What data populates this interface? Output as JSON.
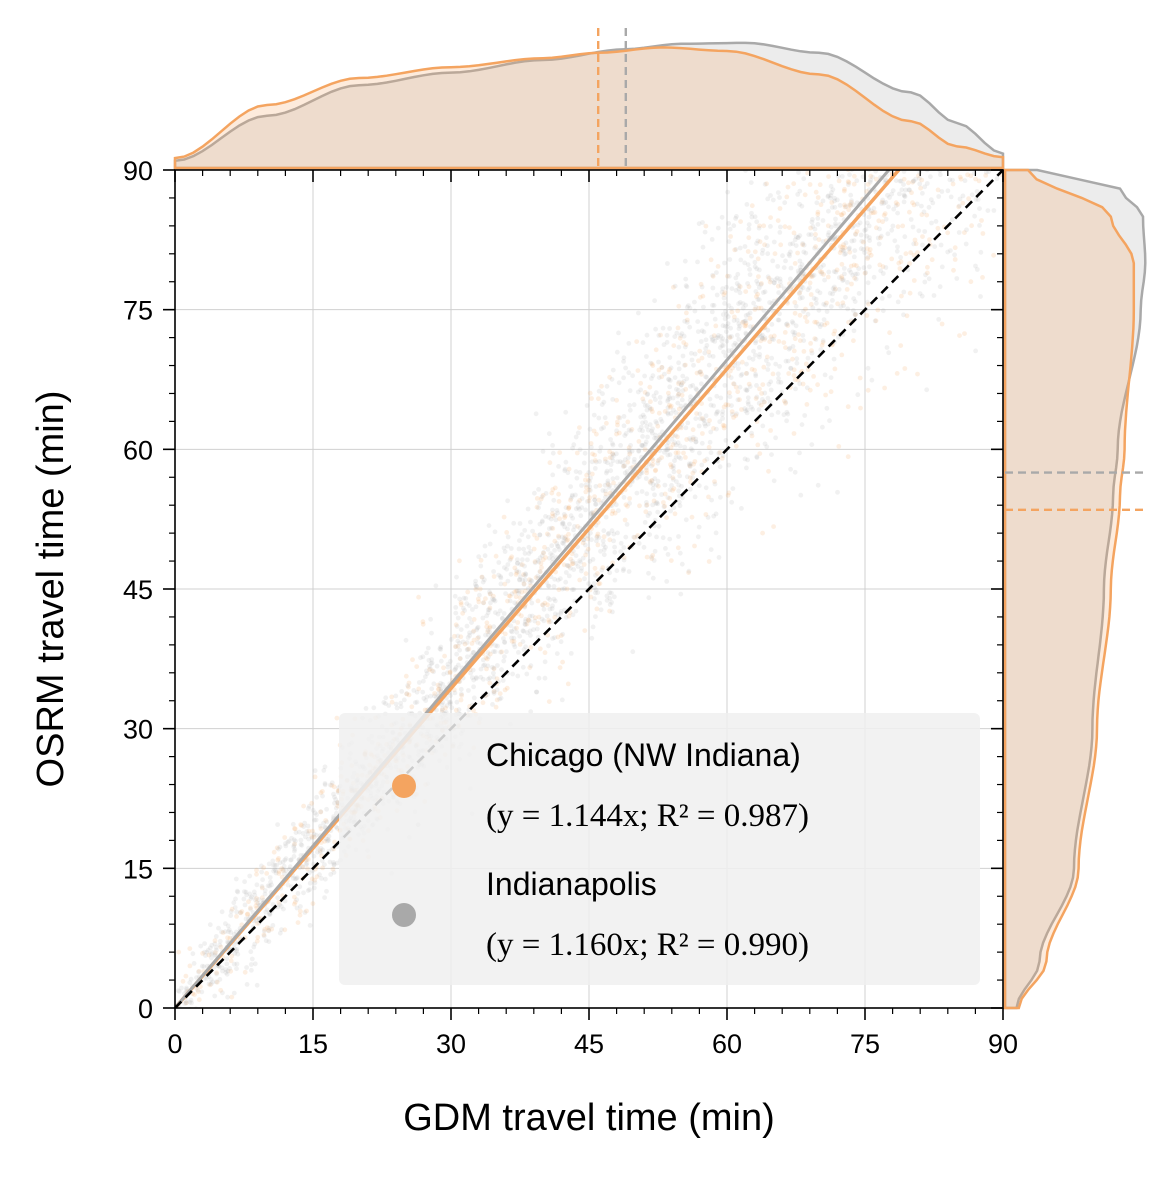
{
  "chart_data": {
    "type": "scatter",
    "xlabel": "GDM travel time (min)",
    "ylabel": "OSRM travel time (min)",
    "xlim": [
      0,
      90
    ],
    "ylim": [
      0,
      90
    ],
    "x_ticks": [
      0,
      15,
      30,
      45,
      60,
      75,
      90
    ],
    "y_ticks": [
      0,
      15,
      30,
      45,
      60,
      75,
      90
    ],
    "grid": true,
    "legend_position": "bottom-right",
    "reference_line": {
      "type": "y=x",
      "style": "dashed",
      "color": "#000000"
    },
    "series": [
      {
        "name": "Chicago (NW Indiana)",
        "equation": "(y = 1.144x; R² = 0.987)",
        "color": "#f4a460",
        "fit_slope": 1.144,
        "r_squared": 0.987,
        "mean_x": 46,
        "mean_y": 53.5,
        "x_density": [
          [
            0,
            0.55
          ],
          [
            10,
            3.5
          ],
          [
            20,
            5.0
          ],
          [
            30,
            5.6
          ],
          [
            40,
            6.1
          ],
          [
            46,
            6.4
          ],
          [
            53,
            6.7
          ],
          [
            60,
            6.5
          ],
          [
            70,
            5.2
          ],
          [
            80,
            2.6
          ],
          [
            85,
            1.2
          ],
          [
            90,
            0.6
          ]
        ],
        "y_density": [
          [
            0,
            0.3
          ],
          [
            5,
            0.9
          ],
          [
            15,
            1.6
          ],
          [
            30,
            2.0
          ],
          [
            45,
            2.3
          ],
          [
            55,
            2.5
          ],
          [
            60,
            2.6
          ],
          [
            75,
            2.8
          ],
          [
            80,
            2.8
          ],
          [
            85,
            2.3
          ],
          [
            90,
            0.5
          ]
        ]
      },
      {
        "name": "Indianapolis",
        "equation": "(y = 1.160x; R² = 0.990)",
        "color": "#a9a9a9",
        "fit_slope": 1.16,
        "r_squared": 0.99,
        "mean_x": 49,
        "mean_y": 57.5,
        "x_density": [
          [
            0,
            0.4
          ],
          [
            10,
            2.9
          ],
          [
            20,
            4.6
          ],
          [
            30,
            5.3
          ],
          [
            40,
            6.0
          ],
          [
            49,
            6.6
          ],
          [
            55,
            6.9
          ],
          [
            62,
            6.95
          ],
          [
            70,
            6.4
          ],
          [
            80,
            4.2
          ],
          [
            85,
            2.5
          ],
          [
            90,
            0.8
          ]
        ],
        "y_density": [
          [
            0,
            0.25
          ],
          [
            5,
            0.75
          ],
          [
            15,
            1.5
          ],
          [
            30,
            1.9
          ],
          [
            45,
            2.15
          ],
          [
            55,
            2.35
          ],
          [
            60,
            2.45
          ],
          [
            75,
            2.95
          ],
          [
            80,
            3.05
          ],
          [
            85,
            3.0
          ],
          [
            88,
            2.5
          ],
          [
            90,
            0.7
          ]
        ]
      }
    ]
  },
  "colors": {
    "chicago": "#f4a460",
    "indianapolis": "#a9a9a9",
    "legend_background": "#f0f0f0",
    "grid": "#d0d0d0"
  }
}
